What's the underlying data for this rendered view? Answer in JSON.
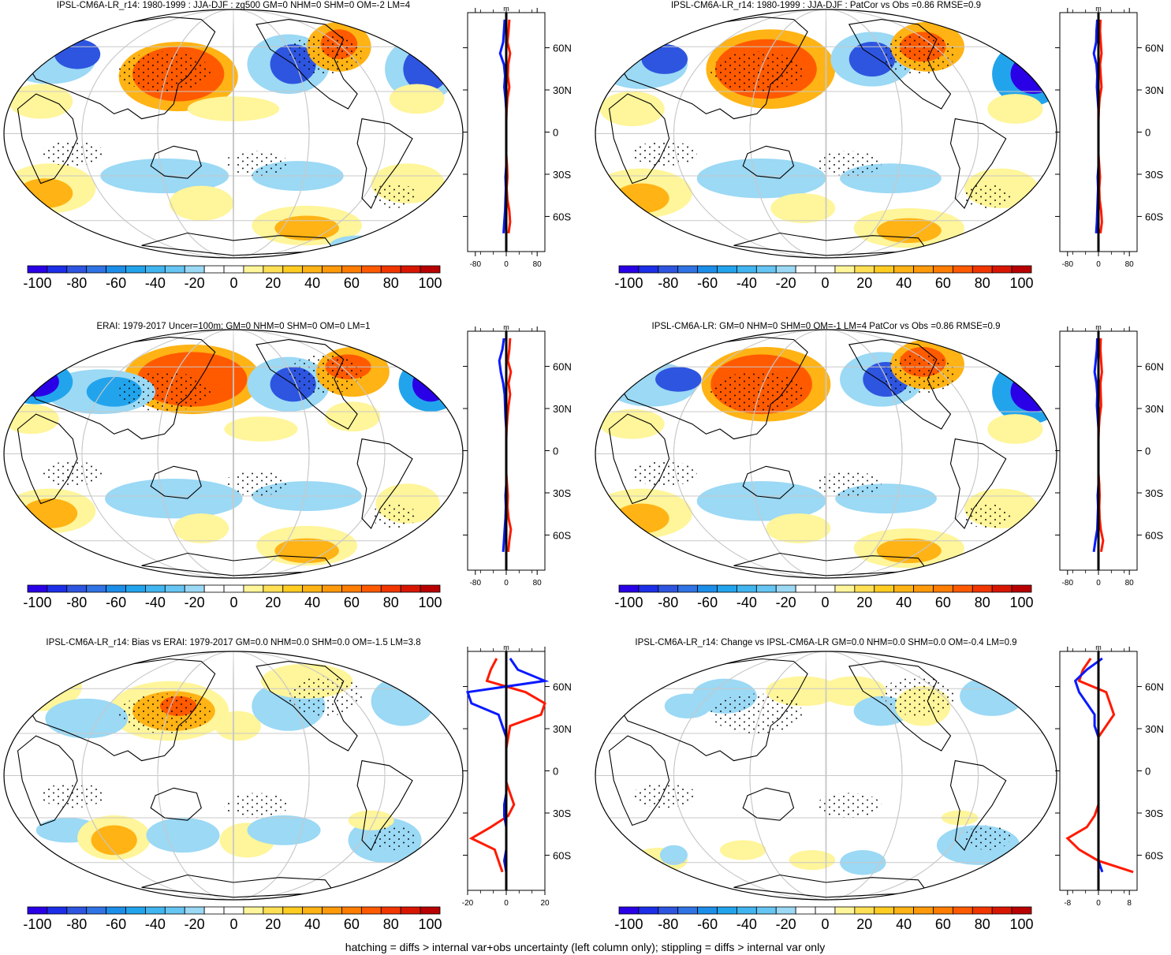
{
  "footer_note": "hatching = diffs > internal var+obs uncertainty (left column only); stippling = diffs > internal var only",
  "colorbar": {
    "labels": [
      "-100",
      "-80",
      "-60",
      "-40",
      "-20",
      "0",
      "20",
      "40",
      "60",
      "80",
      "100"
    ],
    "colors": [
      "#2a00e6",
      "#1c2ee8",
      "#2e55e0",
      "#2f73e4",
      "#1b8ee9",
      "#22a4ec",
      "#41b5ef",
      "#66c5f2",
      "#9bd9f5",
      "#ffffff",
      "#ffffff",
      "#fff59a",
      "#ffe055",
      "#ffcc22",
      "#ffb314",
      "#ff9a0a",
      "#ff7d00",
      "#ff5a00",
      "#f23600",
      "#d81600",
      "#b80000"
    ]
  },
  "profile_lat_labels": [
    "60N",
    "30N",
    "0",
    "30S",
    "60S"
  ],
  "chart_data": [
    {
      "type": "heatmap",
      "title": "IPSL-CM6A-LR_r14: 1980-1999 : JJA-DJF : zg500 GM=0 NHM=0 SHM=0 OM=-2 LM=4",
      "units": "m",
      "profile_xticks": [
        "-80",
        "0",
        "80"
      ],
      "profile_xlim": [
        -100,
        100
      ],
      "zonal_mean_lat": [
        80,
        72,
        64,
        56,
        48,
        40,
        32,
        24,
        16,
        8,
        0,
        -8,
        -16,
        -24,
        -32,
        -40,
        -48,
        -56,
        -64,
        -72
      ],
      "zonal_mean_red": [
        8,
        6,
        3,
        10,
        5,
        4,
        8,
        3,
        1,
        0,
        0,
        0,
        0,
        2,
        3,
        1,
        3,
        8,
        10,
        6
      ],
      "zonal_mean_blue": [
        -4,
        -6,
        -8,
        -16,
        -6,
        -3,
        -5,
        -2,
        0,
        0,
        0,
        0,
        0,
        0,
        -2,
        -1,
        -2,
        -3,
        -5,
        -7
      ]
    },
    {
      "type": "heatmap",
      "title": "IPSL-CM6A-LR_r14: 1980-1999 : JJA-DJF : PatCor vs Obs =0.86 RMSE=0.9",
      "units": "m",
      "profile_xticks": [
        "-80",
        "0",
        "80"
      ],
      "profile_xlim": [
        -100,
        100
      ],
      "zonal_mean_lat": [
        80,
        72,
        64,
        56,
        48,
        40,
        32,
        24,
        16,
        8,
        0,
        -8,
        -16,
        -24,
        -32,
        -40,
        -48,
        -56,
        -64,
        -72
      ],
      "zonal_mean_red": [
        5,
        4,
        6,
        8,
        4,
        6,
        8,
        3,
        1,
        0,
        0,
        0,
        0,
        2,
        4,
        2,
        3,
        7,
        9,
        5
      ],
      "zonal_mean_blue": [
        -3,
        -5,
        -6,
        -12,
        -5,
        -3,
        -4,
        -2,
        0,
        0,
        0,
        0,
        0,
        0,
        -2,
        -1,
        -2,
        -3,
        -4,
        -6
      ]
    },
    {
      "type": "heatmap",
      "title": "ERAI: 1979-2017 Uncer=100m: GM=0 NHM=0 SHM=0 OM=0 LM=1",
      "units": "m",
      "profile_xticks": [
        "-80",
        "0",
        "80"
      ],
      "profile_xlim": [
        -100,
        100
      ],
      "zonal_mean_lat": [
        80,
        72,
        64,
        56,
        48,
        40,
        32,
        24,
        16,
        8,
        0,
        -8,
        -16,
        -24,
        -32,
        -40,
        -48,
        -56,
        -64,
        -72
      ],
      "zonal_mean_red": [
        10,
        8,
        4,
        12,
        6,
        10,
        6,
        3,
        1,
        0,
        0,
        0,
        0,
        2,
        4,
        3,
        6,
        12,
        8,
        5
      ],
      "zonal_mean_blue": [
        -6,
        -10,
        -18,
        -14,
        -8,
        -4,
        -3,
        -2,
        0,
        0,
        0,
        0,
        0,
        0,
        -2,
        -1,
        -2,
        -4,
        -6,
        -8
      ]
    },
    {
      "type": "heatmap",
      "title": "IPSL-CM6A-LR: GM=0 NHM=0 SHM=0 OM=-1 LM=4 PatCor vs Obs =0.86 RMSE=0.9",
      "units": "m",
      "profile_xticks": [
        "-80",
        "0",
        "80"
      ],
      "profile_xlim": [
        -100,
        100
      ],
      "zonal_mean_lat": [
        80,
        72,
        64,
        56,
        48,
        40,
        32,
        24,
        16,
        8,
        0,
        -8,
        -16,
        -24,
        -32,
        -40,
        -48,
        -56,
        -64,
        -72
      ],
      "zonal_mean_red": [
        6,
        5,
        7,
        9,
        5,
        6,
        7,
        3,
        1,
        0,
        0,
        0,
        0,
        2,
        3,
        2,
        3,
        6,
        12,
        7
      ],
      "zonal_mean_blue": [
        -3,
        -4,
        -7,
        -10,
        -5,
        -3,
        -4,
        -2,
        0,
        0,
        0,
        0,
        0,
        0,
        -2,
        -1,
        -2,
        -3,
        -8,
        -12
      ]
    },
    {
      "type": "heatmap",
      "title": "IPSL-CM6A-LR_r14: Bias vs ERAI: 1979-2017 GM=0.0 NHM=0.0 SHM=0.0 OM=-1.5 LM=3.8",
      "units": "m",
      "profile_xticks": [
        "-20",
        "0",
        "20"
      ],
      "profile_xlim": [
        -20,
        20
      ],
      "zonal_mean_lat": [
        80,
        72,
        64,
        56,
        48,
        40,
        32,
        24,
        16,
        8,
        0,
        -8,
        -16,
        -24,
        -32,
        -40,
        -48,
        -56,
        -64,
        -72
      ],
      "zonal_mean_red": [
        -5,
        -8,
        -10,
        10,
        20,
        18,
        2,
        1,
        0,
        0,
        0,
        0,
        2,
        4,
        1,
        -8,
        -18,
        -6,
        -4,
        -2
      ],
      "zonal_mean_blue": [
        2,
        6,
        20,
        -20,
        -18,
        -4,
        -2,
        0,
        0,
        0,
        0,
        0,
        0,
        -1,
        -1,
        0,
        0,
        0,
        -1,
        0
      ]
    },
    {
      "type": "heatmap",
      "title": "IPSL-CM6A-LR_r14: Change vs IPSL-CM6A-LR GM=0.0 NHM=0.0 SHM=0.0 OM=-0.4 LM=0.9",
      "units": "m",
      "profile_xticks": [
        "-8",
        "0",
        "8"
      ],
      "profile_xlim": [
        -10,
        10
      ],
      "zonal_mean_lat": [
        80,
        72,
        64,
        56,
        48,
        40,
        32,
        24,
        16,
        8,
        0,
        -8,
        -16,
        -24,
        -32,
        -40,
        -48,
        -56,
        -64,
        -72
      ],
      "zonal_mean_red": [
        -2,
        -4,
        -5,
        2,
        3,
        4,
        2,
        0,
        0,
        0,
        0,
        0,
        0,
        0,
        -1,
        -3,
        -8,
        -5,
        0,
        9
      ],
      "zonal_mean_blue": [
        1,
        -3,
        -6,
        -5,
        -3,
        -1,
        -1,
        0,
        0,
        0,
        0,
        0,
        0,
        0,
        0,
        0,
        0,
        0,
        0,
        1
      ]
    }
  ]
}
